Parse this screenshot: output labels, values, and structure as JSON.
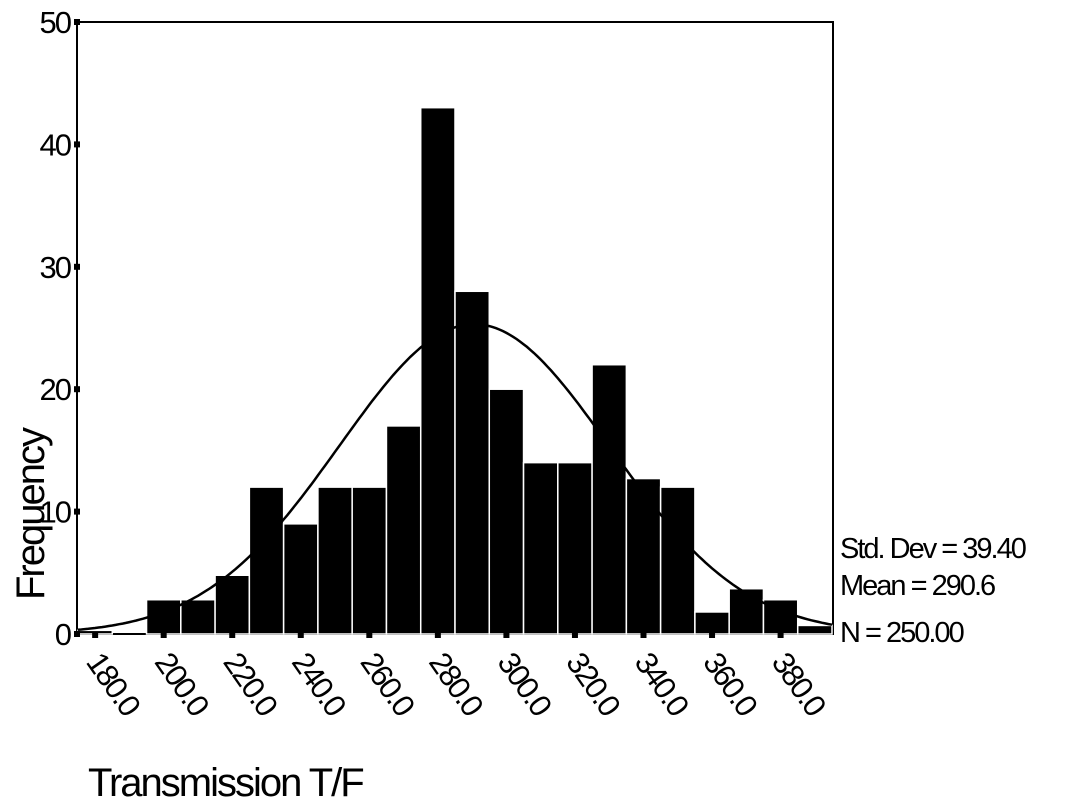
{
  "chart_data": {
    "type": "bar",
    "title": "",
    "xlabel": "Transmission T/F",
    "ylabel": "Frequency",
    "bin_width": 10,
    "xlim": [
      175,
      395
    ],
    "ylim": [
      0,
      50
    ],
    "x_ticks": [
      "180.0",
      "200.0",
      "220.0",
      "240.0",
      "260.0",
      "280.0",
      "300.0",
      "320.0",
      "340.0",
      "360.0",
      "380.0"
    ],
    "y_ticks": [
      "0",
      "10",
      "20",
      "30",
      "40",
      "50"
    ],
    "bin_centers": [
      180,
      190,
      200,
      210,
      220,
      230,
      240,
      250,
      260,
      270,
      280,
      290,
      300,
      310,
      320,
      330,
      340,
      350,
      360,
      370,
      380,
      390
    ],
    "values": [
      0.3,
      0,
      2.8,
      2.8,
      4.8,
      12,
      9,
      12,
      12,
      17,
      43,
      28,
      20,
      14,
      14,
      22,
      12.7,
      12,
      1.8,
      3.7,
      2.8,
      0.7
    ],
    "normal_curve": {
      "mean": 290.6,
      "std_dev": 39.4,
      "n": 250.0,
      "bin_width": 10
    },
    "stats": [
      "Std. Dev = 39.40",
      "Mean = 290.6",
      "N = 250.00"
    ],
    "bar_color": "#000000",
    "grid": false
  }
}
